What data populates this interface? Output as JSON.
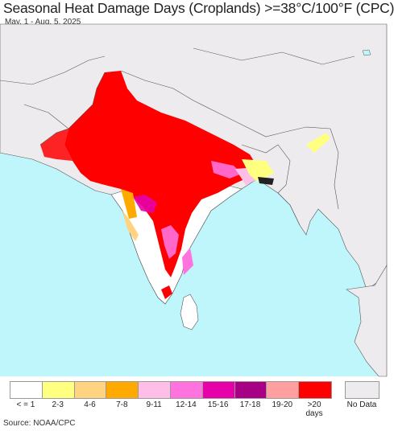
{
  "title": "Seasonal Heat Damage Days (Croplands) >=38°C/100°F (CPC)",
  "subtitle": "May. 1 - Aug. 5, 2025",
  "source": "Source: NOAA/CPC",
  "colors": {
    "ocean": "#bff6fb",
    "land": "#eeebef",
    "cropland_low": "#ffffff",
    "border": "#555555"
  },
  "legend": {
    "items": [
      {
        "label": "< = 1",
        "color": "#ffffff"
      },
      {
        "label": "2-3",
        "color": "#ffff80"
      },
      {
        "label": "4-6",
        "color": "#ffd37f"
      },
      {
        "label": "7-8",
        "color": "#ffaa00"
      },
      {
        "label": "9-11",
        "color": "#ffbee8"
      },
      {
        "label": "12-14",
        "color": "#ff73df"
      },
      {
        "label": "15-16",
        "color": "#e600a9"
      },
      {
        "label": "17-18",
        "color": "#a80084"
      },
      {
        "label": "19-20",
        "color": "#ff9f9f"
      },
      {
        "label": ">20 days",
        "color": "#ff0000"
      }
    ],
    "no_data": {
      "label": "No Data",
      "color": "#eeebef"
    }
  }
}
